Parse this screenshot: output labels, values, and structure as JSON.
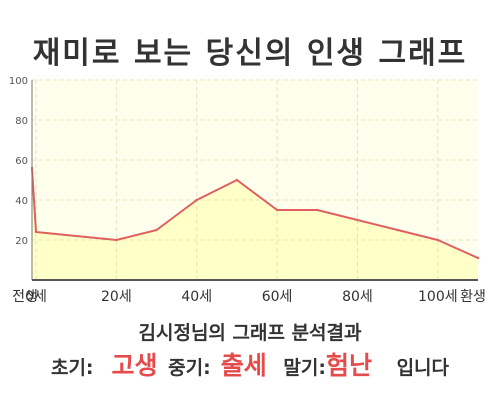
{
  "title": "재미로 보는 당신의 인생 그래프",
  "subtitle": "김시정님의 그래프 분석결과",
  "result": {
    "early_label": "초기:",
    "early_value": "고생",
    "mid_label": "중기:",
    "mid_value": "출세",
    "late_label": "말기:",
    "late_value": "험난",
    "suffix": "입니다"
  },
  "colors": {
    "line": "#e06060",
    "fill": "#ffffc8",
    "plot_bg": "#ffffee",
    "highlight": "#e64b4b"
  },
  "chart_data": {
    "type": "area",
    "x": [
      -1,
      0,
      20,
      30,
      40,
      50,
      60,
      70,
      80,
      90,
      100,
      110
    ],
    "values": [
      56,
      24,
      20,
      25,
      40,
      50,
      35,
      35,
      30,
      25,
      20,
      11
    ],
    "x_ticks": [
      {
        "x": -1,
        "label": "전생"
      },
      {
        "x": 0,
        "label": "0세"
      },
      {
        "x": 20,
        "label": "20세"
      },
      {
        "x": 40,
        "label": "40세"
      },
      {
        "x": 60,
        "label": "60세"
      },
      {
        "x": 80,
        "label": "80세"
      },
      {
        "x": 100,
        "label": "100세"
      },
      {
        "x": 110,
        "label": "환생"
      }
    ],
    "y_ticks": [
      20,
      40,
      60,
      80,
      100
    ],
    "ylim": [
      0,
      100
    ],
    "grid": true
  }
}
